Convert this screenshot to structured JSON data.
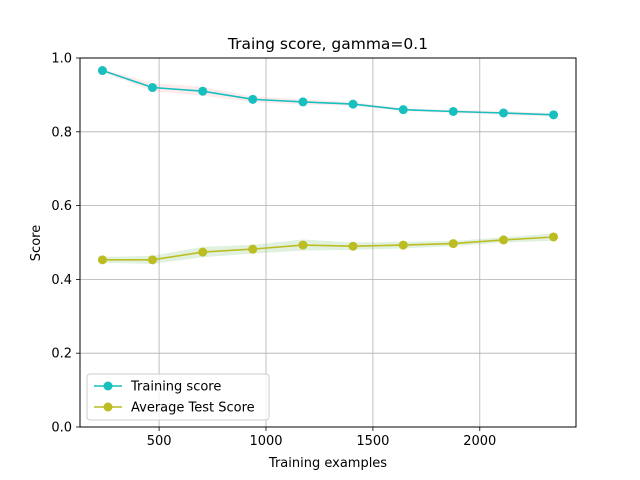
{
  "chart_data": {
    "type": "line",
    "title": "Traing score, gamma=0.1",
    "xlabel": "Training examples",
    "ylabel": "Score",
    "xlim": [
      130,
      2450
    ],
    "ylim": [
      0.0,
      1.0
    ],
    "xticks": [
      500,
      1000,
      1500,
      2000
    ],
    "yticks": [
      0.0,
      0.2,
      0.4,
      0.6,
      0.8,
      1.0
    ],
    "xtick_labels": [
      "500",
      "1000",
      "1500",
      "2000"
    ],
    "ytick_labels": [
      "0.0",
      "0.2",
      "0.4",
      "0.6",
      "0.8",
      "1.0"
    ],
    "grid": true,
    "legend_position": "lower-left",
    "x": [
      235,
      469,
      704,
      938,
      1173,
      1407,
      1642,
      1876,
      2111,
      2345
    ],
    "series": [
      {
        "name": "Training score",
        "color": "#17bfbf",
        "band_color": "#ff9999",
        "values": [
          0.966,
          0.92,
          0.91,
          0.888,
          0.881,
          0.875,
          0.86,
          0.855,
          0.851,
          0.846
        ],
        "lower": [
          0.962,
          0.91,
          0.898,
          0.88,
          0.874,
          0.87,
          0.856,
          0.851,
          0.846,
          0.841
        ],
        "upper": [
          0.97,
          0.932,
          0.922,
          0.896,
          0.888,
          0.88,
          0.864,
          0.859,
          0.856,
          0.851
        ]
      },
      {
        "name": "Average Test Score",
        "color": "#bcbd22",
        "band_color": "#66bb66",
        "values": [
          0.453,
          0.453,
          0.474,
          0.482,
          0.493,
          0.49,
          0.493,
          0.497,
          0.507,
          0.515
        ],
        "lower": [
          0.445,
          0.442,
          0.46,
          0.47,
          0.478,
          0.48,
          0.484,
          0.49,
          0.5,
          0.505
        ],
        "upper": [
          0.461,
          0.464,
          0.488,
          0.494,
          0.508,
          0.5,
          0.502,
          0.504,
          0.514,
          0.525
        ]
      }
    ]
  }
}
